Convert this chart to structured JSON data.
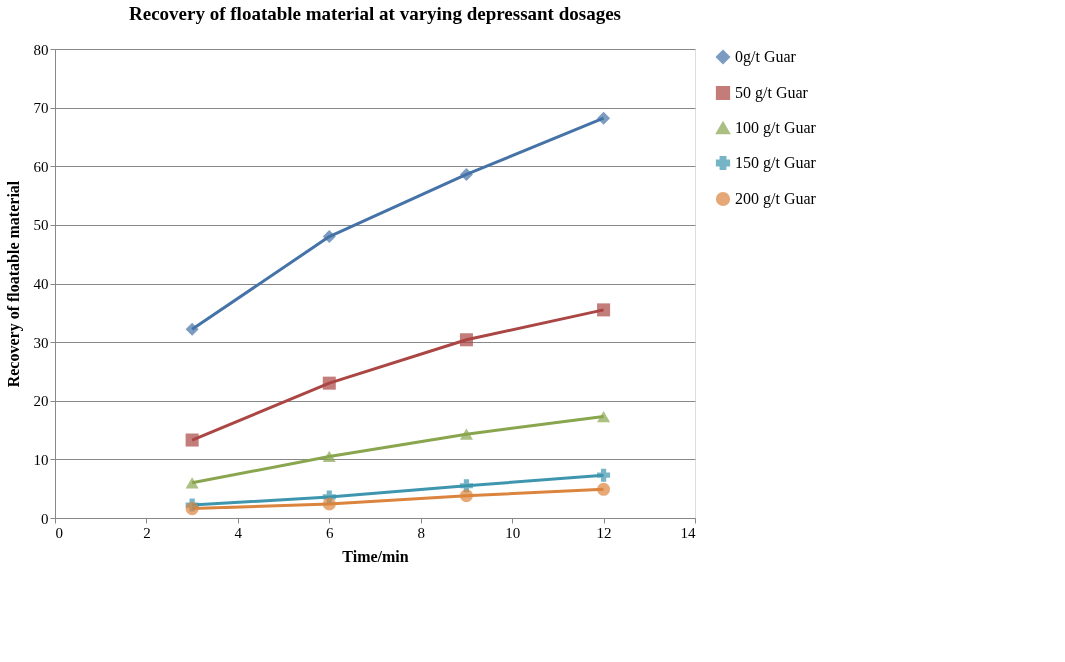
{
  "chart_data": {
    "type": "line",
    "title": "Recovery of floatable material at varying depressant dosages",
    "xlabel": "Time/min",
    "ylabel": "Recovery of floatable material",
    "x": [
      3,
      6,
      9,
      12
    ],
    "series": [
      {
        "name": "0g/t Guar",
        "color": "#4572a7",
        "marker": "diamond",
        "values": [
          32.2,
          48.0,
          58.6,
          68.2
        ]
      },
      {
        "name": "50 g/t Guar",
        "color": "#aa4643",
        "marker": "square",
        "values": [
          13.3,
          23.0,
          30.4,
          35.5
        ]
      },
      {
        "name": "100 g/t Guar",
        "color": "#89a54e",
        "marker": "triangle",
        "values": [
          6.0,
          10.5,
          14.3,
          17.3
        ]
      },
      {
        "name": "150 g/t Guar",
        "color": "#3d96ae",
        "marker": "cross",
        "values": [
          2.2,
          3.6,
          5.5,
          7.3
        ]
      },
      {
        "name": "200 g/t Guar",
        "color": "#db843d",
        "marker": "circle",
        "values": [
          1.6,
          2.4,
          3.8,
          4.9
        ]
      }
    ],
    "xlim": [
      0,
      14
    ],
    "xticks": [
      0,
      2,
      4,
      6,
      8,
      10,
      12,
      14
    ],
    "ylim": [
      0,
      80
    ],
    "yticks": [
      0,
      10,
      20,
      30,
      40,
      50,
      60,
      70,
      80
    ],
    "grid": "y",
    "legend": "right",
    "line_style": "solid"
  }
}
